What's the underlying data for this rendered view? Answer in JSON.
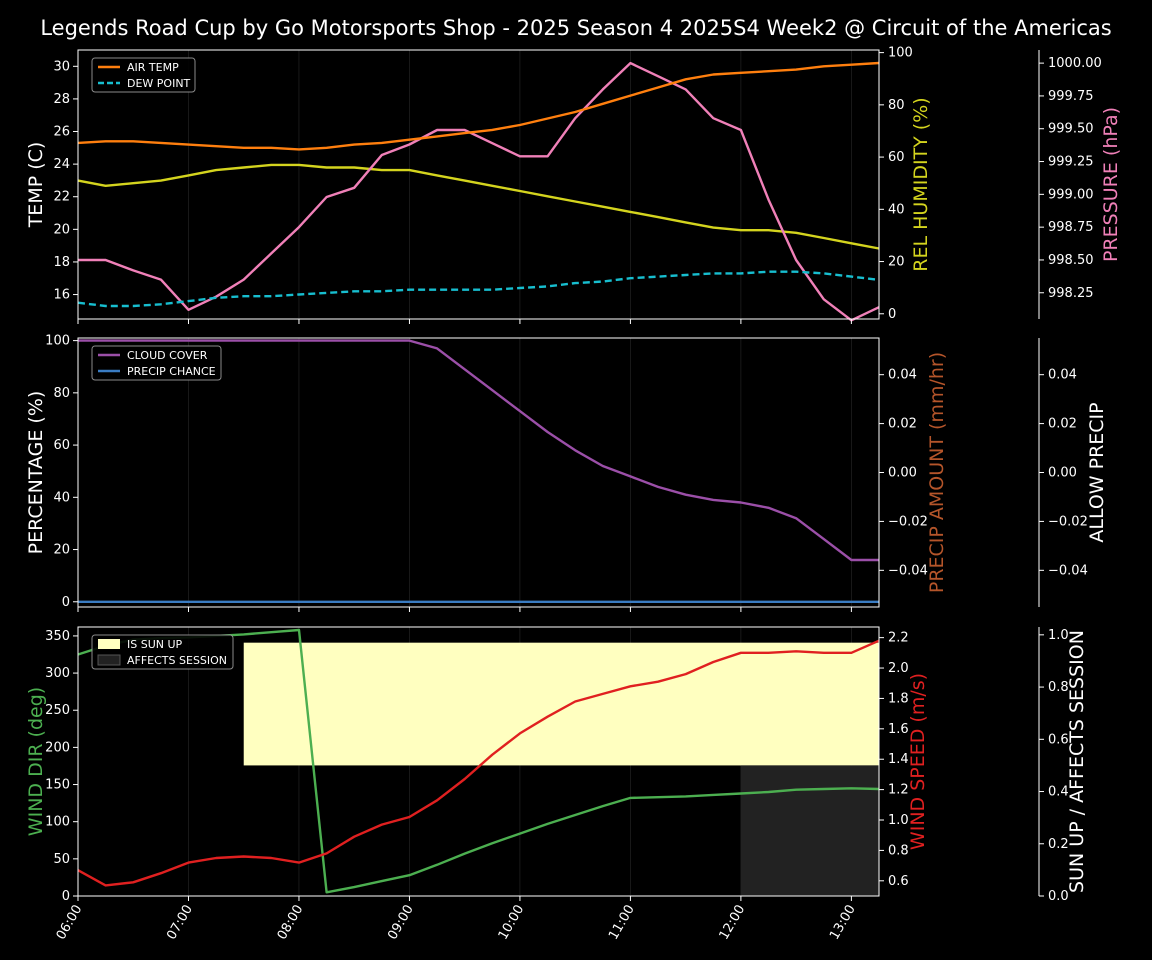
{
  "title": "Legends Road Cup by Go Motorsports Shop - 2025 Season 4 2025S4 Week2 @ Circuit of the Americas",
  "x_ticks": [
    "06:00",
    "07:00",
    "08:00",
    "09:00",
    "10:00",
    "11:00",
    "12:00",
    "13:00"
  ],
  "colors": {
    "air_temp": "#ff7f0e",
    "dew_point": "#17becf",
    "humidity": "#d4d41e",
    "pressure": "#f080b8",
    "cloud": "#9b4fa8",
    "precip_chance": "#3a7cc2",
    "precip_amount": "#b5552a",
    "wind_dir": "#4caf50",
    "wind_speed": "#e02020",
    "sun_up": "#ffffc0",
    "affects": "#222222"
  },
  "chart_data": [
    {
      "type": "line",
      "x": [
        "06:00",
        "06:15",
        "06:30",
        "06:45",
        "07:00",
        "07:15",
        "07:30",
        "07:45",
        "08:00",
        "08:15",
        "08:30",
        "08:45",
        "09:00",
        "09:15",
        "09:30",
        "09:45",
        "10:00",
        "10:15",
        "10:30",
        "10:45",
        "11:00",
        "11:15",
        "11:30",
        "11:45",
        "12:00",
        "12:15",
        "12:30",
        "12:45",
        "13:00",
        "13:15"
      ],
      "yaxes": {
        "temp": {
          "label": "TEMP (C)",
          "ylim": [
            14.5,
            31
          ],
          "ticks": [
            16,
            18,
            20,
            22,
            24,
            26,
            28,
            30
          ]
        },
        "humidity": {
          "label": "REL HUMIDITY (%)",
          "ylim": [
            -2,
            101
          ],
          "ticks": [
            0,
            20,
            40,
            60,
            80,
            100
          ]
        },
        "pressure": {
          "label": "PRESSURE (hPa)",
          "ylim": [
            998.05,
            1000.1
          ],
          "ticks": [
            "998.25",
            "998.50",
            "998.75",
            "999.00",
            "999.25",
            "999.50",
            "999.75",
            "1000.00"
          ]
        }
      },
      "legend": {
        "position": "upper-left",
        "items": [
          "AIR TEMP",
          "DEW POINT"
        ]
      },
      "series": [
        {
          "name": "AIR TEMP",
          "axis": "temp",
          "values": [
            25.3,
            25.4,
            25.4,
            25.3,
            25.2,
            25.1,
            25.0,
            25.0,
            24.9,
            25.0,
            25.2,
            25.3,
            25.5,
            25.7,
            25.9,
            26.1,
            26.4,
            26.8,
            27.2,
            27.7,
            28.2,
            28.7,
            29.2,
            29.5,
            29.6,
            29.7,
            29.8,
            30.0,
            30.1,
            30.2
          ]
        },
        {
          "name": "DEW POINT",
          "axis": "temp",
          "style": "dashed",
          "values": [
            15.5,
            15.3,
            15.3,
            15.4,
            15.6,
            15.8,
            15.9,
            15.9,
            16.0,
            16.1,
            16.2,
            16.2,
            16.3,
            16.3,
            16.3,
            16.3,
            16.4,
            16.5,
            16.7,
            16.8,
            17.0,
            17.1,
            17.2,
            17.3,
            17.3,
            17.4,
            17.4,
            17.3,
            17.1,
            16.9
          ]
        },
        {
          "axis": "humidity",
          "values": [
            51,
            49,
            50,
            51,
            53,
            55,
            56,
            57,
            57,
            56,
            56,
            55,
            55,
            53,
            51,
            49,
            47,
            45,
            43,
            41,
            39,
            37,
            35,
            33,
            32,
            32,
            31,
            29,
            27,
            25
          ]
        },
        {
          "axis": "pressure",
          "values": [
            998.5,
            998.5,
            998.42,
            998.35,
            998.12,
            998.22,
            998.35,
            998.55,
            998.75,
            998.98,
            999.05,
            999.3,
            999.38,
            999.49,
            999.49,
            999.39,
            999.29,
            999.29,
            999.58,
            999.8,
            1000.0,
            999.9,
            999.8,
            999.58,
            999.49,
            998.96,
            998.5,
            998.2,
            998.04,
            998.14
          ]
        }
      ]
    },
    {
      "type": "line",
      "x": [
        "06:00",
        "06:15",
        "06:30",
        "06:45",
        "07:00",
        "07:15",
        "07:30",
        "07:45",
        "08:00",
        "08:15",
        "08:30",
        "08:45",
        "09:00",
        "09:15",
        "09:30",
        "09:45",
        "10:00",
        "10:15",
        "10:30",
        "10:45",
        "11:00",
        "11:15",
        "11:30",
        "11:45",
        "12:00",
        "12:15",
        "12:30",
        "12:45",
        "13:00",
        "13:15"
      ],
      "yaxes": {
        "percentage": {
          "label": "PERCENTAGE (%)",
          "ylim": [
            -2,
            101
          ],
          "ticks": [
            0,
            20,
            40,
            60,
            80,
            100
          ]
        },
        "precip_amount": {
          "label": "PRECIP AMOUNT (mm/hr)",
          "ylim": [
            -0.055,
            0.055
          ],
          "ticks": [
            "−0.04",
            "−0.02",
            "0.00",
            "0.02",
            "0.04"
          ]
        },
        "allow_precip": {
          "label": "ALLOW PRECIP",
          "ylim": [
            -0.055,
            0.055
          ],
          "ticks": [
            "−0.04",
            "−0.02",
            "0.00",
            "0.02",
            "0.04"
          ]
        }
      },
      "legend": {
        "position": "upper-left",
        "items": [
          "CLOUD COVER",
          "PRECIP CHANCE"
        ]
      },
      "series": [
        {
          "name": "CLOUD COVER",
          "axis": "percentage",
          "values": [
            100,
            100,
            100,
            100,
            100,
            100,
            100,
            100,
            100,
            100,
            100,
            100,
            100,
            97,
            89,
            81,
            73,
            65,
            58,
            52,
            48,
            44,
            41,
            39,
            38,
            36,
            32,
            24,
            16,
            16
          ]
        },
        {
          "name": "PRECIP CHANCE",
          "axis": "percentage",
          "values": [
            0,
            0,
            0,
            0,
            0,
            0,
            0,
            0,
            0,
            0,
            0,
            0,
            0,
            0,
            0,
            0,
            0,
            0,
            0,
            0,
            0,
            0,
            0,
            0,
            0,
            0,
            0,
            0,
            0,
            0
          ]
        }
      ]
    },
    {
      "type": "line",
      "x": [
        "06:00",
        "06:15",
        "06:30",
        "06:45",
        "07:00",
        "07:15",
        "07:30",
        "07:45",
        "08:00",
        "08:15",
        "08:30",
        "08:45",
        "09:00",
        "09:15",
        "09:30",
        "09:45",
        "10:00",
        "10:15",
        "10:30",
        "10:45",
        "11:00",
        "11:15",
        "11:30",
        "11:45",
        "12:00",
        "12:15",
        "12:30",
        "12:45",
        "13:00",
        "13:15"
      ],
      "yaxes": {
        "wind_dir": {
          "label": "WIND DIR (deg)",
          "ylim": [
            0,
            362
          ],
          "ticks": [
            0,
            50,
            100,
            150,
            200,
            250,
            300,
            350
          ]
        },
        "wind_speed": {
          "label": "WIND SPEED (m/s)",
          "ylim": [
            0.5,
            2.27
          ],
          "ticks": [
            "0.6",
            "0.8",
            "1.0",
            "1.2",
            "1.4",
            "1.6",
            "1.8",
            "2.0",
            "2.2"
          ]
        },
        "sun": {
          "label": "SUN UP / AFFECTS SESSION",
          "ylim": [
            0,
            1.03
          ],
          "ticks": [
            "0.0",
            "0.2",
            "0.4",
            "0.6",
            "0.8",
            "1.0"
          ]
        }
      },
      "legend": {
        "position": "upper-left",
        "items": [
          "IS SUN UP",
          "AFFECTS SESSION"
        ]
      },
      "bands": [
        {
          "name": "IS SUN UP",
          "x_start": "07:30",
          "x_end": "13:15",
          "y_bottom": 0.5,
          "y_top": 0.97
        },
        {
          "name": "AFFECTS SESSION",
          "x_start": "12:00",
          "x_end": "13:15",
          "y_bottom": 0.0,
          "y_top": 0.5
        }
      ],
      "series": [
        {
          "axis": "wind_dir",
          "values": [
            325,
            337,
            345,
            347,
            348,
            350,
            352,
            355,
            358,
            5,
            12,
            20,
            28,
            42,
            57,
            71,
            84,
            97,
            109,
            121,
            132,
            133,
            134,
            136,
            138,
            140,
            143,
            144,
            145,
            144
          ]
        },
        {
          "axis": "wind_speed",
          "values": [
            0.67,
            0.57,
            0.59,
            0.65,
            0.72,
            0.75,
            0.76,
            0.75,
            0.72,
            0.78,
            0.89,
            0.97,
            1.02,
            1.13,
            1.27,
            1.43,
            1.57,
            1.68,
            1.78,
            1.83,
            1.88,
            1.91,
            1.96,
            2.04,
            2.1,
            2.1,
            2.11,
            2.1,
            2.1,
            2.18
          ]
        }
      ]
    }
  ]
}
